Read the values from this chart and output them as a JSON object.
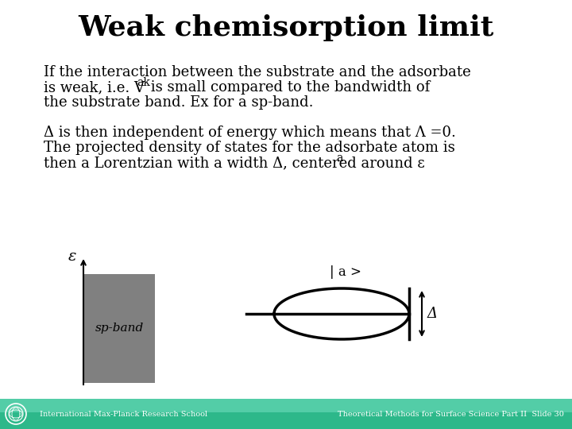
{
  "title": "Weak chemisorption limit",
  "title_fontsize": 26,
  "para1_line1": "If the interaction between the substrate and the adsorbate",
  "para1_line2_pre": "is weak, i.e. V",
  "para1_sub": "ak",
  "para1_line2_post": " is small compared to the bandwidth of",
  "para1_line3": "the substrate band. Ex for a sp-band.",
  "para2_line1": "Δ is then independent of energy which means that Λ =0.",
  "para2_line2": "The projected density of states for the adsorbate atom is",
  "para2_line3": "then a Lorentzian with a width Δ, centered around ε",
  "para2_line3_sub": "a",
  "body_fontsize": 13,
  "epsilon_label": "ε",
  "sp_band_label": "sp-band",
  "ket_label": "| a >",
  "delta_label": "Δ",
  "footer_left": "International Max-Planck Research School",
  "footer_right": "Theoretical Methods for Surface Science Part II  Slide 30",
  "bg_color": "#ffffff",
  "gray_color": "#808080"
}
